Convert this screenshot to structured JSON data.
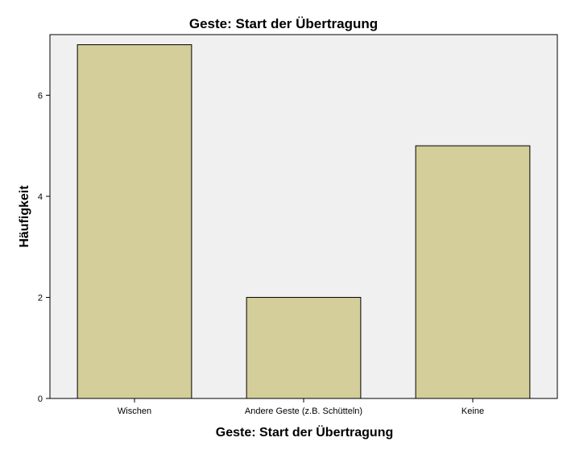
{
  "chart_data": {
    "type": "bar",
    "title": "Geste: Start der Übertragung",
    "xlabel": "Geste: Start der Übertragung",
    "ylabel": "Häufigkeit",
    "categories": [
      "Wischen",
      "Andere Geste (z.B. Schütteln)",
      "Keine"
    ],
    "values": [
      7,
      2,
      5
    ],
    "ylim": [
      0,
      7.2
    ],
    "yticks": [
      0,
      2,
      4,
      6
    ],
    "grid": false,
    "colors": {
      "bar_fill": "#d3ce9a",
      "bar_stroke": "#000000",
      "plot_background": "#f0f0f0",
      "axis": "#000000"
    }
  }
}
